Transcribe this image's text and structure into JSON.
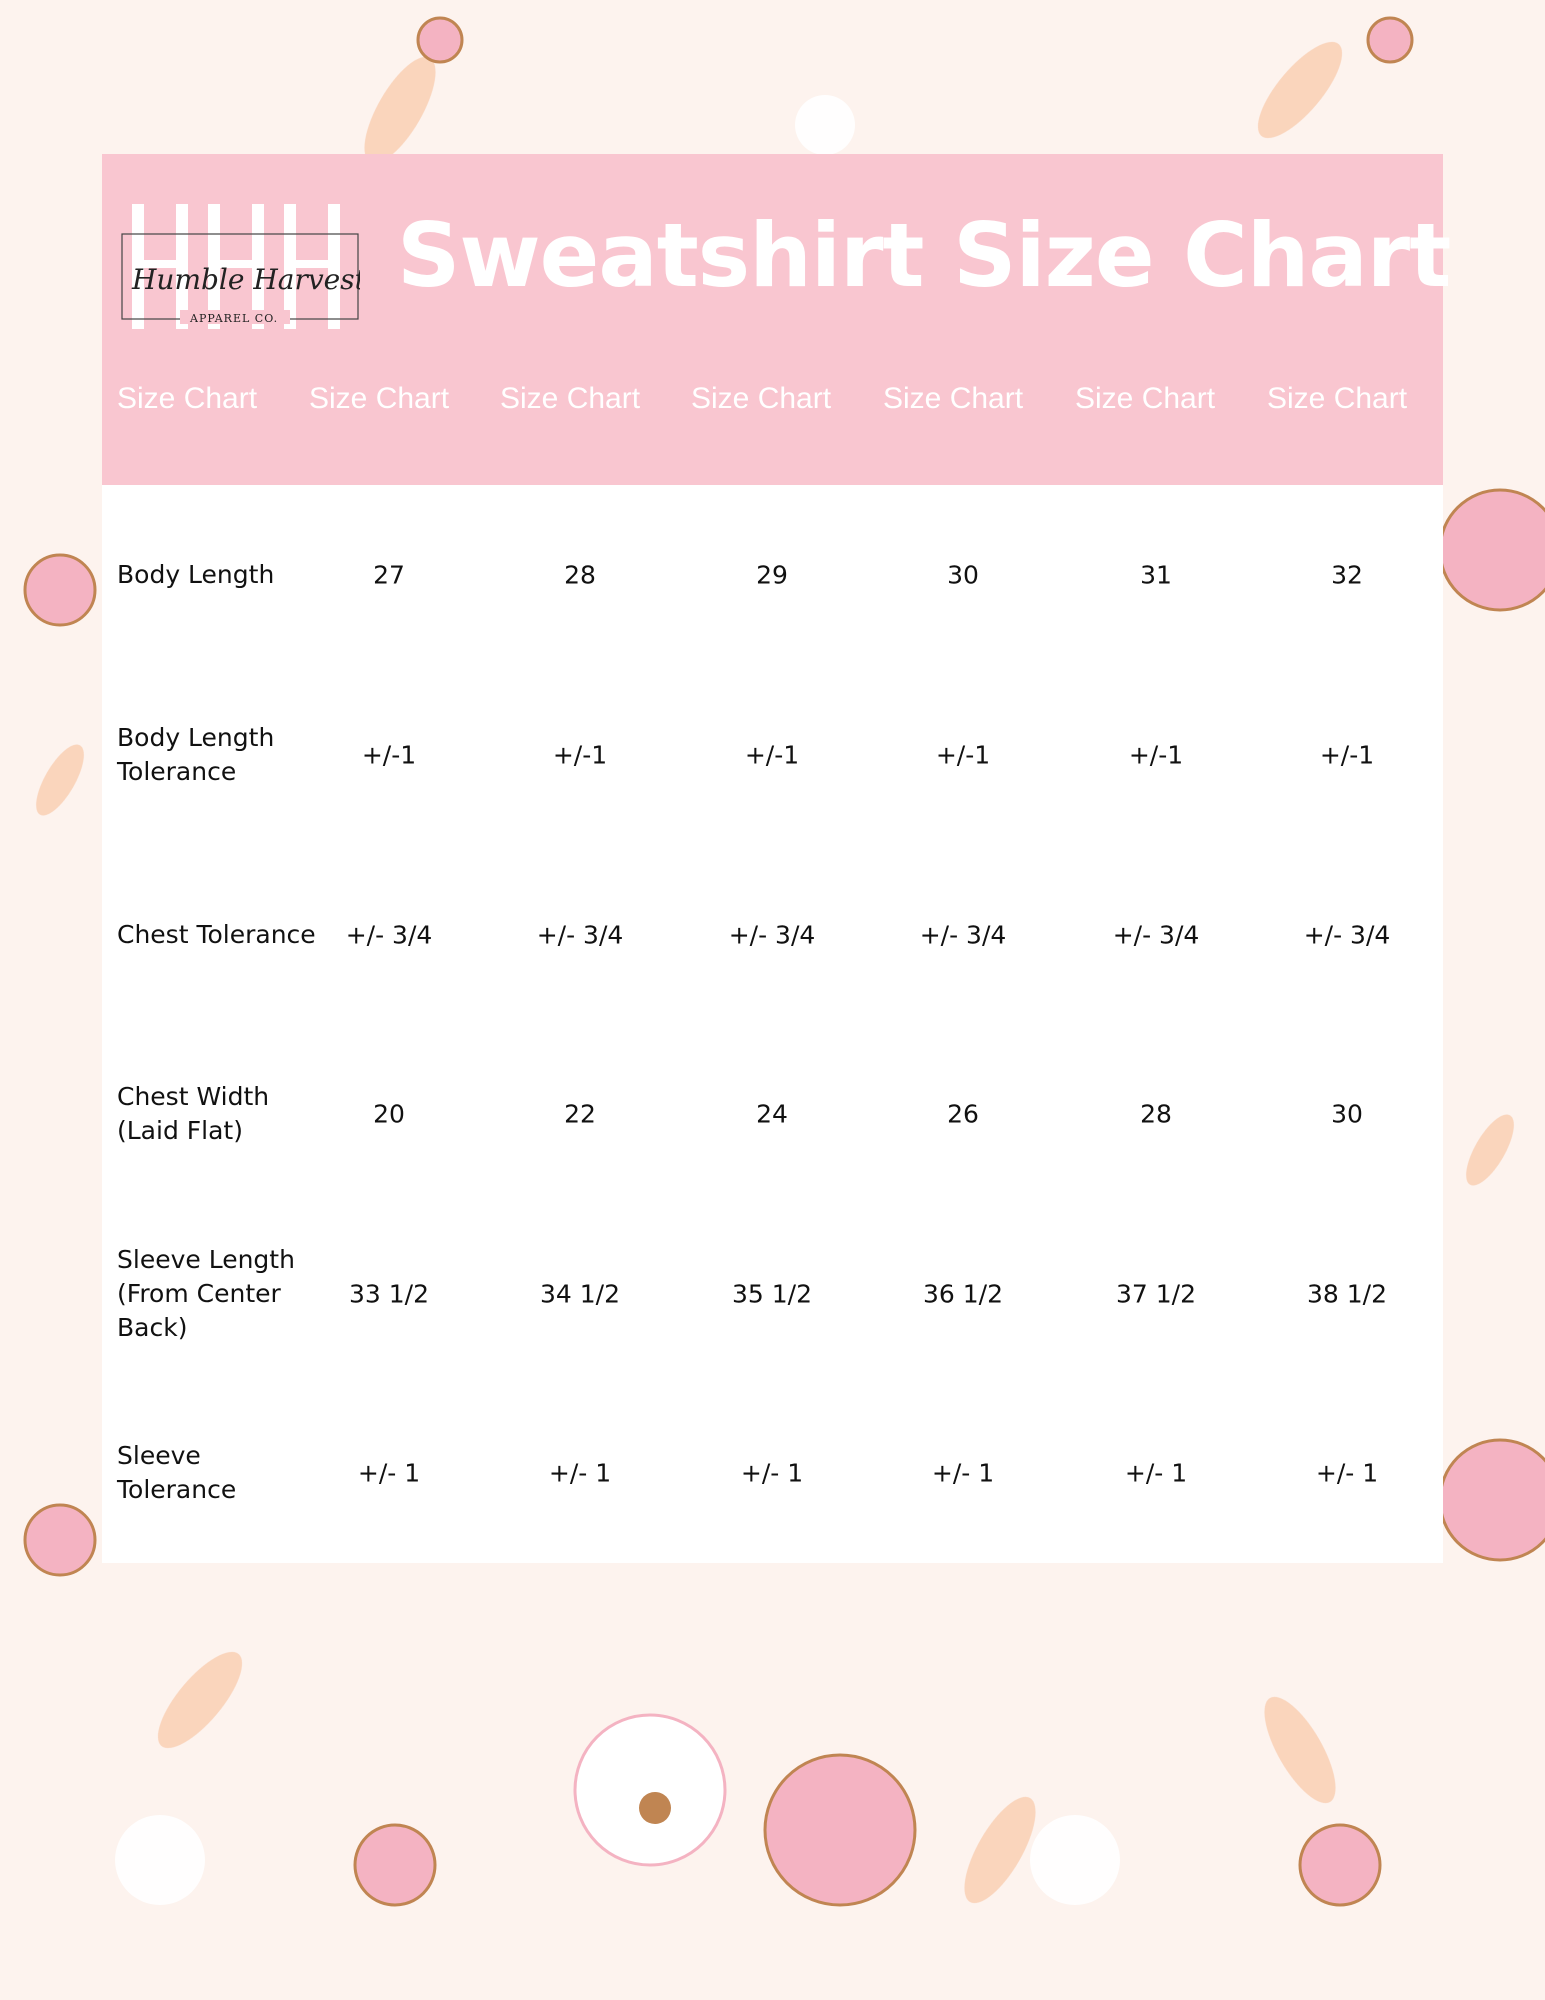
{
  "brand": {
    "logo_text": "Humble Harvest",
    "logo_sub": "APPAREL CO.",
    "monogram": "HHH"
  },
  "title": "Sweatshirt Size Chart",
  "header_labels": [
    "Size Chart",
    "Size Chart",
    "Size Chart",
    "Size Chart",
    "Size Chart",
    "Size Chart",
    "Size Chart"
  ],
  "rows": [
    {
      "label": "Body Length",
      "values": [
        "27",
        "28",
        "29",
        "30",
        "31",
        "32"
      ]
    },
    {
      "label": "Body Length Tolerance",
      "values": [
        "+/-1",
        "+/-1",
        "+/-1",
        "+/-1",
        "+/-1",
        "+/-1"
      ]
    },
    {
      "label": "Chest Tolerance",
      "values": [
        "+/- 3/4",
        "+/- 3/4",
        "+/- 3/4",
        "+/- 3/4",
        "+/- 3/4",
        "+/- 3/4"
      ]
    },
    {
      "label": "Chest Width (Laid Flat)",
      "values": [
        "20",
        "22",
        "24",
        "26",
        "28",
        "30"
      ]
    },
    {
      "label": "Sleeve Length (From Center Back)",
      "values": [
        "33 1/2",
        "34 1/2",
        "35 1/2",
        "36 1/2",
        "37 1/2",
        "38 1/2"
      ]
    },
    {
      "label": "Sleeve Tolerance",
      "values": [
        "+/- 1",
        "+/- 1",
        "+/- 1",
        "+/- 1",
        "+/- 1",
        "+/- 1"
      ]
    }
  ],
  "colors": {
    "header": "#f9c6d0",
    "background": "#fdf3ee",
    "accent_peach": "#f9c9a8",
    "accent_pink": "#f4a9bc",
    "accent_brown": "#c08552"
  }
}
